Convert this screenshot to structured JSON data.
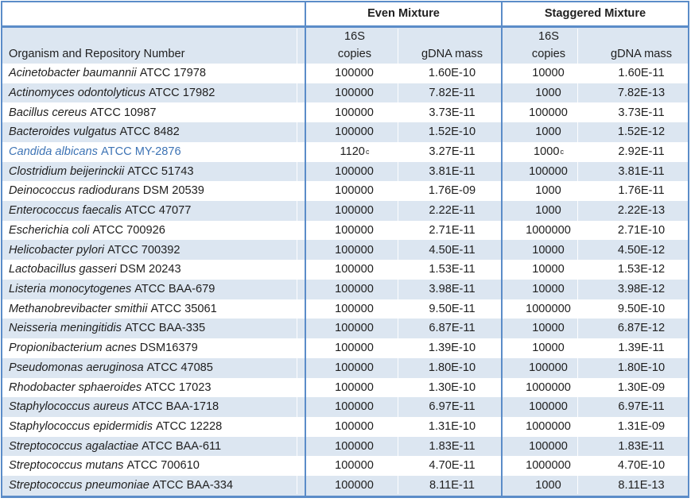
{
  "header": {
    "even_mixture": "Even Mixture",
    "staggered_mixture": "Staggered Mixture",
    "organism_col": "Organism and Repository Number",
    "sub_line1": "16S",
    "sub_copies": "copies",
    "sub_gdna": "gDNA mass"
  },
  "colors": {
    "border_blue": "#5b8cc8",
    "row_shade": "#dce6f1",
    "highlight_text": "#3e74b5"
  },
  "table": {
    "rows": [
      {
        "organism": "Acinetobacter baumannii",
        "repository": "ATCC 17978",
        "even_copies": "100000",
        "even_sup": "",
        "even_gdna": "1.60E-10",
        "stag_copies": "10000",
        "stag_sup": "",
        "stag_gdna": "1.60E-11",
        "highlighted": false
      },
      {
        "organism": "Actinomyces odontolyticus",
        "repository": "ATCC 17982",
        "even_copies": "100000",
        "even_sup": "",
        "even_gdna": "7.82E-11",
        "stag_copies": "1000",
        "stag_sup": "",
        "stag_gdna": "7.82E-13",
        "highlighted": false
      },
      {
        "organism": "Bacillus cereus",
        "repository": "ATCC 10987",
        "even_copies": "100000",
        "even_sup": "",
        "even_gdna": "3.73E-11",
        "stag_copies": "100000",
        "stag_sup": "",
        "stag_gdna": "3.73E-11",
        "highlighted": false
      },
      {
        "organism": "Bacteroides vulgatus",
        "repository": "ATCC 8482",
        "even_copies": "100000",
        "even_sup": "",
        "even_gdna": "1.52E-10",
        "stag_copies": "1000",
        "stag_sup": "",
        "stag_gdna": "1.52E-12",
        "highlighted": false
      },
      {
        "organism": "Candida albicans",
        "repository": "ATCC MY-2876",
        "even_copies": "1120",
        "even_sup": "c",
        "even_gdna": "3.27E-11",
        "stag_copies": "1000",
        "stag_sup": "c",
        "stag_gdna": "2.92E-11",
        "highlighted": true
      },
      {
        "organism": "Clostridium beijerinckii",
        "repository": "ATCC 51743",
        "even_copies": "100000",
        "even_sup": "",
        "even_gdna": "3.81E-11",
        "stag_copies": "100000",
        "stag_sup": "",
        "stag_gdna": "3.81E-11",
        "highlighted": false
      },
      {
        "organism": "Deinococcus radiodurans",
        "repository": "DSM 20539",
        "even_copies": "100000",
        "even_sup": "",
        "even_gdna": "1.76E-09",
        "stag_copies": "1000",
        "stag_sup": "",
        "stag_gdna": "1.76E-11",
        "highlighted": false
      },
      {
        "organism": "Enterococcus faecalis",
        "repository": "ATCC 47077",
        "even_copies": "100000",
        "even_sup": "",
        "even_gdna": "2.22E-11",
        "stag_copies": "1000",
        "stag_sup": "",
        "stag_gdna": "2.22E-13",
        "highlighted": false
      },
      {
        "organism": "Escherichia coli",
        "repository": "ATCC 700926",
        "even_copies": "100000",
        "even_sup": "",
        "even_gdna": "2.71E-11",
        "stag_copies": "1000000",
        "stag_sup": "",
        "stag_gdna": "2.71E-10",
        "highlighted": false
      },
      {
        "organism": "Helicobacter pylori",
        "repository": "ATCC 700392",
        "even_copies": "100000",
        "even_sup": "",
        "even_gdna": "4.50E-11",
        "stag_copies": "10000",
        "stag_sup": "",
        "stag_gdna": "4.50E-12",
        "highlighted": false
      },
      {
        "organism": "Lactobacillus gasseri",
        "repository": "DSM 20243",
        "even_copies": "100000",
        "even_sup": "",
        "even_gdna": "1.53E-11",
        "stag_copies": "10000",
        "stag_sup": "",
        "stag_gdna": "1.53E-12",
        "highlighted": false
      },
      {
        "organism": "Listeria monocytogenes",
        "repository": "ATCC BAA-679",
        "even_copies": "100000",
        "even_sup": "",
        "even_gdna": "3.98E-11",
        "stag_copies": "10000",
        "stag_sup": "",
        "stag_gdna": "3.98E-12",
        "highlighted": false
      },
      {
        "organism": "Methanobrevibacter smithii",
        "repository": "ATCC 35061",
        "even_copies": "100000",
        "even_sup": "",
        "even_gdna": "9.50E-11",
        "stag_copies": "1000000",
        "stag_sup": "",
        "stag_gdna": "9.50E-10",
        "highlighted": false
      },
      {
        "organism": "Neisseria meningitidis",
        "repository": "ATCC BAA-335",
        "even_copies": "100000",
        "even_sup": "",
        "even_gdna": "6.87E-11",
        "stag_copies": "10000",
        "stag_sup": "",
        "stag_gdna": "6.87E-12",
        "highlighted": false
      },
      {
        "organism": "Propionibacterium acnes",
        "repository": "DSM16379",
        "even_copies": "100000",
        "even_sup": "",
        "even_gdna": "1.39E-10",
        "stag_copies": "10000",
        "stag_sup": "",
        "stag_gdna": "1.39E-11",
        "highlighted": false
      },
      {
        "organism": "Pseudomonas aeruginosa",
        "repository": "ATCC 47085",
        "even_copies": "100000",
        "even_sup": "",
        "even_gdna": "1.80E-10",
        "stag_copies": "100000",
        "stag_sup": "",
        "stag_gdna": "1.80E-10",
        "highlighted": false
      },
      {
        "organism": "Rhodobacter sphaeroides",
        "repository": "ATCC 17023",
        "even_copies": "100000",
        "even_sup": "",
        "even_gdna": "1.30E-10",
        "stag_copies": "1000000",
        "stag_sup": "",
        "stag_gdna": "1.30E-09",
        "highlighted": false
      },
      {
        "organism": "Staphylococcus aureus",
        "repository": "ATCC BAA-1718",
        "even_copies": "100000",
        "even_sup": "",
        "even_gdna": "6.97E-11",
        "stag_copies": "100000",
        "stag_sup": "",
        "stag_gdna": "6.97E-11",
        "highlighted": false
      },
      {
        "organism": "Staphylococcus epidermidis",
        "repository": "ATCC 12228",
        "even_copies": "100000",
        "even_sup": "",
        "even_gdna": "1.31E-10",
        "stag_copies": "1000000",
        "stag_sup": "",
        "stag_gdna": "1.31E-09",
        "highlighted": false
      },
      {
        "organism": "Streptococcus agalactiae",
        "repository": "ATCC BAA-611",
        "even_copies": "100000",
        "even_sup": "",
        "even_gdna": "1.83E-11",
        "stag_copies": "100000",
        "stag_sup": "",
        "stag_gdna": "1.83E-11",
        "highlighted": false
      },
      {
        "organism": "Streptococcus mutans",
        "repository": "ATCC 700610",
        "even_copies": "100000",
        "even_sup": "",
        "even_gdna": "4.70E-11",
        "stag_copies": "1000000",
        "stag_sup": "",
        "stag_gdna": "4.70E-10",
        "highlighted": false
      },
      {
        "organism": "Streptococcus pneumoniae",
        "repository": "ATCC BAA-334",
        "even_copies": "100000",
        "even_sup": "",
        "even_gdna": "8.11E-11",
        "stag_copies": "1000",
        "stag_sup": "",
        "stag_gdna": "8.11E-13",
        "highlighted": false
      }
    ]
  }
}
